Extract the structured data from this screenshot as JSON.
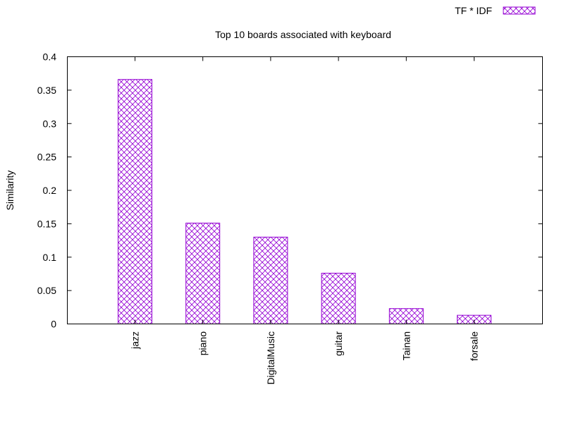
{
  "chart_data": {
    "type": "bar",
    "title": "Top 10 boards associated with keyboard",
    "xlabel": "",
    "ylabel": "Similarity",
    "categories": [
      "jazz",
      "piano",
      "DigitalMusic",
      "guitar",
      "Tainan",
      "forsale"
    ],
    "series": [
      {
        "name": "TF * IDF",
        "values": [
          0.366,
          0.151,
          0.13,
          0.076,
          0.023,
          0.013
        ]
      }
    ],
    "yticks": [
      "0",
      "0.05",
      "0.1",
      "0.15",
      "0.2",
      "0.25",
      "0.3",
      "0.35",
      "0.4"
    ],
    "ylim": [
      0,
      0.4
    ],
    "grid": false,
    "legend_position": "top-right",
    "colors": {
      "bar": "#9400d3",
      "axis": "#000000"
    },
    "bar_fill_pattern": "crosshatch"
  }
}
